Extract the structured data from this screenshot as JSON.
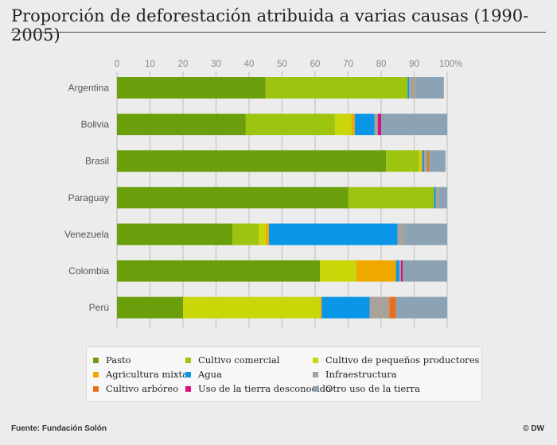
{
  "header": {
    "title": "Proporción de deforestación atribuida a varias causas (1990-2005)"
  },
  "footer": {
    "source": "Fuente: Fundación Solón",
    "credit": "© DW"
  },
  "chart_data": {
    "type": "bar",
    "orientation": "horizontal",
    "stacked": true,
    "xlim": [
      0,
      100
    ],
    "x_ticks": [
      "0",
      "10",
      "20",
      "30",
      "40",
      "50",
      "60",
      "70",
      "80",
      "90",
      "100%"
    ],
    "grid": true,
    "legend_position": "bottom",
    "categories": [
      "Argentina",
      "Bolivia",
      "Brasil",
      "Paraguay",
      "Venezuela",
      "Colombia",
      "Perú"
    ],
    "series": [
      {
        "name": "Pasto",
        "color": "#6a9e0a",
        "values": [
          45,
          39,
          81.5,
          70,
          35,
          61.5,
          20
        ]
      },
      {
        "name": "Cultivo comercial",
        "color": "#9dc40e",
        "values": [
          43,
          27,
          10,
          26,
          8,
          0,
          0
        ]
      },
      {
        "name": "Cultivo de pequeños productores",
        "color": "#c9d608",
        "values": [
          0,
          5,
          0.5,
          0,
          2,
          11,
          41.5
        ]
      },
      {
        "name": "Agricultura mixta",
        "color": "#f0a800",
        "values": [
          0,
          1,
          0.5,
          0,
          1,
          12,
          0.5
        ]
      },
      {
        "name": "Agua",
        "color": "#0a96e6",
        "values": [
          0.5,
          6,
          0.5,
          0.5,
          39,
          1,
          14.5
        ]
      },
      {
        "name": "Infraestructura",
        "color": "#a8a29a",
        "values": [
          2,
          1,
          1,
          1,
          2,
          0.5,
          6
        ]
      },
      {
        "name": "Cultivo arbóreo",
        "color": "#e8701a",
        "values": [
          0,
          0,
          0.5,
          0,
          0,
          0,
          2
        ]
      },
      {
        "name": "Uso de la tierra desconocido",
        "color": "#d6127a",
        "values": [
          0,
          1,
          0,
          0,
          0,
          0.5,
          0
        ]
      },
      {
        "name": "Otro uso de la tierra",
        "color": "#8ba3b4",
        "values": [
          8.5,
          20,
          5,
          2.5,
          13,
          13.5,
          15.5
        ]
      }
    ]
  }
}
